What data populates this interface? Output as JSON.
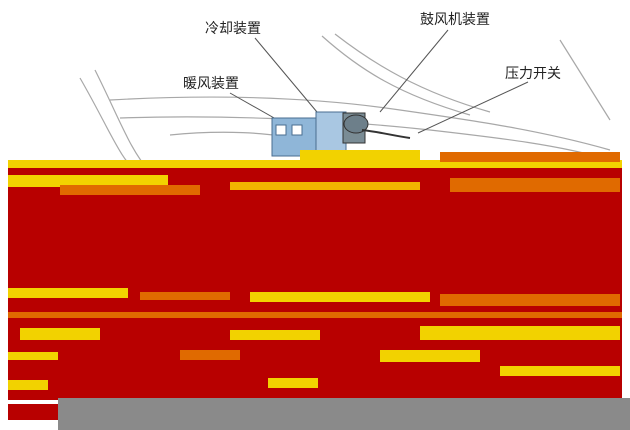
{
  "labels": {
    "cooling": "冷却装置",
    "blower": "鼓风机装置",
    "pressure": "压力开关",
    "heater": "暖风装置"
  },
  "colors": {
    "glitch_red": "#b80000",
    "glitch_yellow": "#f2d200",
    "glitch_orange": "#e06a00",
    "bottom_bar": "#8a8a8a",
    "line": "#9a9a9a",
    "part_blue": "#8fb6d8"
  }
}
